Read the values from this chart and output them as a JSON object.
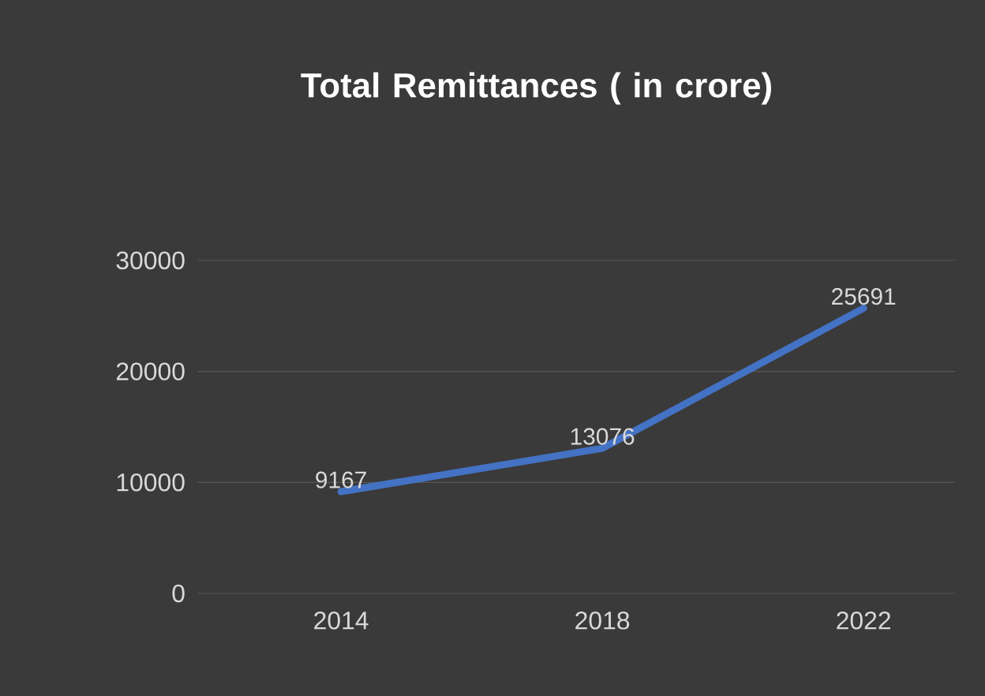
{
  "chart_data": {
    "type": "line",
    "title": "Total Remittances ( in crore)",
    "categories": [
      "2014",
      "2018",
      "2022"
    ],
    "values": [
      9167,
      13076,
      25691
    ],
    "color": "#4472c4",
    "ylim": [
      0,
      30000
    ],
    "yticks": [
      0,
      10000,
      20000,
      30000
    ],
    "grid": "y",
    "data_labels": true
  }
}
